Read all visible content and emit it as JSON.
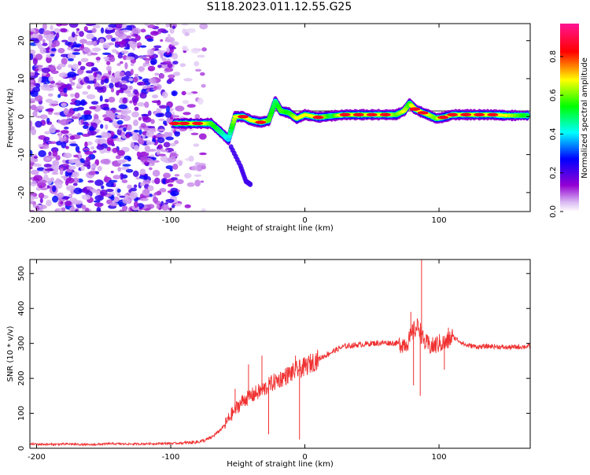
{
  "title": "S118.2023.011.12.55.G25",
  "chart_data": [
    {
      "type": "heatmap",
      "title": "S118.2023.011.12.55.G25",
      "xlabel": "Height of straight line (km)",
      "ylabel": "Frequency (Hz)",
      "xlim": [
        -205,
        168
      ],
      "ylim": [
        -25,
        24.5
      ],
      "xticks": [
        -200,
        -100,
        0,
        100
      ],
      "yticks": [
        -20,
        -10,
        0,
        10,
        20
      ],
      "grid": false,
      "colorbar": {
        "label": "Normalized spectral amplitude",
        "range": [
          0.0,
          0.97
        ],
        "ticks": [
          0.0,
          0.2,
          0.4,
          0.6,
          0.8
        ],
        "tick_labels": [
          "0.0",
          "0.2",
          "0.4",
          "0.6",
          "0.8"
        ],
        "colors": [
          "#ffffff",
          "#9400d3",
          "#0000ff",
          "#00ffff",
          "#00ff00",
          "#ffff00",
          "#ff0000",
          "#ff1493"
        ]
      },
      "noise_region": {
        "x": [
          -205,
          -75
        ],
        "y": [
          -25,
          24.5
        ],
        "amplitude": [
          0.05,
          0.3
        ]
      },
      "signal_trace": {
        "x": [
          -97,
          -90,
          -80,
          -70,
          -63,
          -57,
          -52,
          -46,
          -40,
          -33,
          -27,
          -22,
          -18,
          -12,
          -6,
          0,
          10,
          20,
          30,
          40,
          50,
          60,
          68,
          74,
          78,
          82,
          88,
          92,
          98,
          103,
          110,
          120,
          130,
          140,
          150,
          168
        ],
        "y": [
          -1.8,
          -1.8,
          -1.8,
          -1.8,
          -4.0,
          -6.0,
          0.0,
          0.0,
          -1.0,
          -1.5,
          -1.0,
          4.0,
          1.5,
          1.0,
          -0.5,
          0.5,
          -0.2,
          0.2,
          0.5,
          0.5,
          0.5,
          0.5,
          0.5,
          1.5,
          3.5,
          2.0,
          1.0,
          0.5,
          -0.5,
          -0.2,
          0.5,
          0.5,
          0.5,
          0.5,
          0.3,
          0.3
        ],
        "amplitude": [
          0.8,
          0.9,
          0.85,
          0.6,
          0.5,
          0.4,
          0.7,
          0.8,
          0.75,
          0.85,
          0.6,
          0.5,
          0.6,
          0.55,
          0.7,
          0.75,
          0.8,
          0.5,
          0.85,
          0.95,
          0.9,
          0.8,
          0.6,
          0.7,
          0.55,
          0.9,
          0.8,
          0.7,
          0.6,
          0.85,
          0.9,
          0.92,
          0.9,
          0.9,
          0.7,
          0.5
        ]
      },
      "streak": {
        "x": [
          -55,
          -48,
          -44,
          -40
        ],
        "y": [
          -8,
          -13,
          -17,
          -18
        ]
      }
    },
    {
      "type": "line",
      "xlabel": "Height of straight line (km)",
      "ylabel": "SNR (10 * v/v)",
      "xlim": [
        -205,
        168
      ],
      "ylim": [
        0,
        540
      ],
      "xticks": [
        -200,
        -100,
        0,
        100
      ],
      "yticks": [
        0,
        100,
        200,
        300,
        400,
        500
      ],
      "grid": false,
      "series": [
        {
          "color": "#f03030",
          "x": [
            -205,
            -190,
            -175,
            -160,
            -145,
            -130,
            -115,
            -100,
            -90,
            -80,
            -75,
            -70,
            -65,
            -60,
            -55,
            -50,
            -45,
            -40,
            -35,
            -30,
            -25,
            -20,
            -15,
            -10,
            -5,
            0,
            5,
            10,
            15,
            20,
            25,
            30,
            40,
            50,
            60,
            70,
            75,
            78,
            80,
            82,
            85,
            88,
            90,
            95,
            100,
            105,
            110,
            120,
            130,
            140,
            150,
            160,
            168
          ],
          "y": [
            12,
            11,
            12,
            10,
            13,
            12,
            13,
            14,
            15,
            18,
            22,
            30,
            45,
            65,
            95,
            120,
            140,
            150,
            160,
            170,
            185,
            195,
            205,
            215,
            225,
            232,
            245,
            255,
            265,
            275,
            285,
            292,
            296,
            300,
            302,
            300,
            300,
            310,
            330,
            340,
            350,
            310,
            300,
            290,
            300,
            300,
            320,
            295,
            290,
            292,
            288,
            290,
            292
          ]
        }
      ],
      "spikes": [
        {
          "x": -52,
          "y": 170
        },
        {
          "x": -42,
          "y": 240
        },
        {
          "x": -32,
          "y": 265
        },
        {
          "x": -27,
          "y": 40
        },
        {
          "x": -7,
          "y": 265
        },
        {
          "x": -4,
          "y": 25
        },
        {
          "x": 79,
          "y": 390
        },
        {
          "x": 81,
          "y": 180
        },
        {
          "x": 87,
          "y": 540
        },
        {
          "x": 86,
          "y": 150
        },
        {
          "x": 107,
          "y": 345
        },
        {
          "x": 104,
          "y": 225
        }
      ]
    }
  ]
}
